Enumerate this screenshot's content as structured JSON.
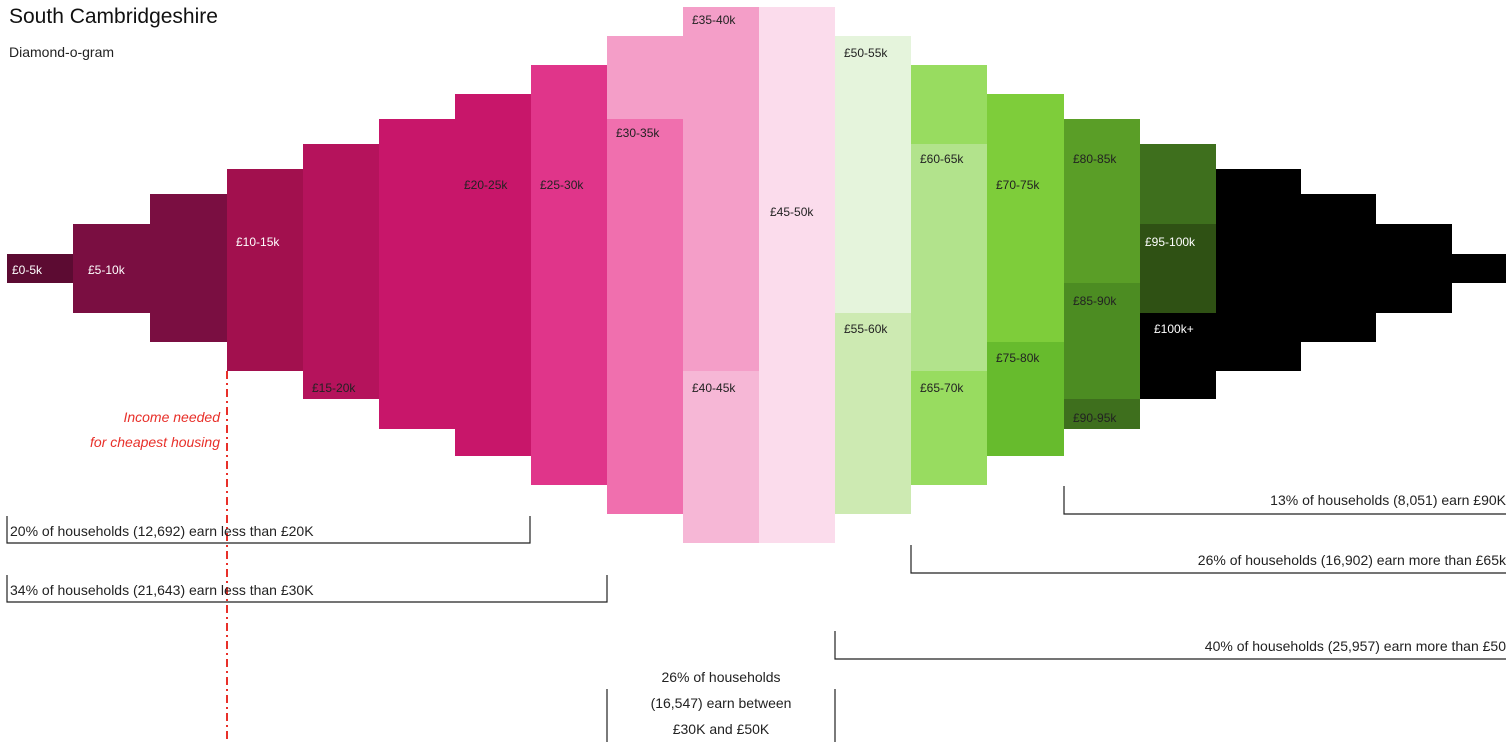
{
  "title": "South Cambridgeshire",
  "subtitle": "Diamond-o-gram",
  "chart_data": {
    "type": "bar",
    "title": "South Cambridgeshire",
    "subtitle": "Diamond-o-gram",
    "columns": [
      {
        "label": "£0-5k",
        "color": "#5c0b32",
        "label_color": "#ffffff"
      },
      {
        "label": "£5-10k",
        "color": "#7a0e41",
        "label_color": "#ffffff"
      },
      {
        "label": "£10-15k",
        "color": "#a2104e",
        "label_color": "#ffffff"
      },
      {
        "label": "£15-20k",
        "color": "#b5135c",
        "label_color": "#222222"
      },
      {
        "label": "£20-25k",
        "color": "#c8166a",
        "label_color": "#222222"
      },
      {
        "label": "£25-30k",
        "color": "#e0358a",
        "label_color": "#222222"
      },
      {
        "label": "£30-35k",
        "color": "#f06fae",
        "label_color": "#222222"
      },
      {
        "label": "£35-40k",
        "color": "#f49ec8",
        "label_color": "#222222"
      },
      {
        "label": "£40-45k",
        "color": "#f6b7d6",
        "label_color": "#222222"
      },
      {
        "label": "£45-50k",
        "color": "#fbdcec",
        "label_color": "#222222"
      },
      {
        "label": "£50-55k",
        "color": "#e5f4dc",
        "label_color": "#222222"
      },
      {
        "label": "£55-60k",
        "color": "#cdeab2",
        "label_color": "#222222"
      },
      {
        "label": "£60-65k",
        "color": "#b2e38c",
        "label_color": "#222222"
      },
      {
        "label": "£65-70k",
        "color": "#98dc60",
        "label_color": "#222222"
      },
      {
        "label": "£70-75k",
        "color": "#7ecd3a",
        "label_color": "#222222"
      },
      {
        "label": "£75-80k",
        "color": "#67bb2d",
        "label_color": "#222222"
      },
      {
        "label": "£80-85k",
        "color": "#5a9e27",
        "label_color": "#222222"
      },
      {
        "label": "£85-90k",
        "color": "#4c8c22",
        "label_color": "#222222"
      },
      {
        "label": "£90-95k",
        "color": "#3e6f1d",
        "label_color": "#222222"
      },
      {
        "label": "£95-100k",
        "color": "#2f5114",
        "label_color": "#ffffff"
      },
      {
        "label": "£100k+",
        "color": "#000000",
        "label_color": "#ffffff"
      }
    ],
    "shares": {
      "below_20k": "20% of households (12,692) earn less than £20K",
      "below_30k": "34% of households (21,643) earn less than  £30K",
      "above_50k": "40% of households (25,957) earn more than £50",
      "above_65k": "26% of households (16,902) earn more than £65k",
      "above_90k": "13% of households (8,051) earn £90K",
      "between_30k_50k": [
        "26% of households",
        "(16,547) earn between",
        "£30K and £50K"
      ]
    },
    "threshold_marker": {
      "income_band": "£10-15k",
      "text": [
        "Income needed",
        "for cheapest housing"
      ],
      "color": "#e8302a"
    }
  }
}
